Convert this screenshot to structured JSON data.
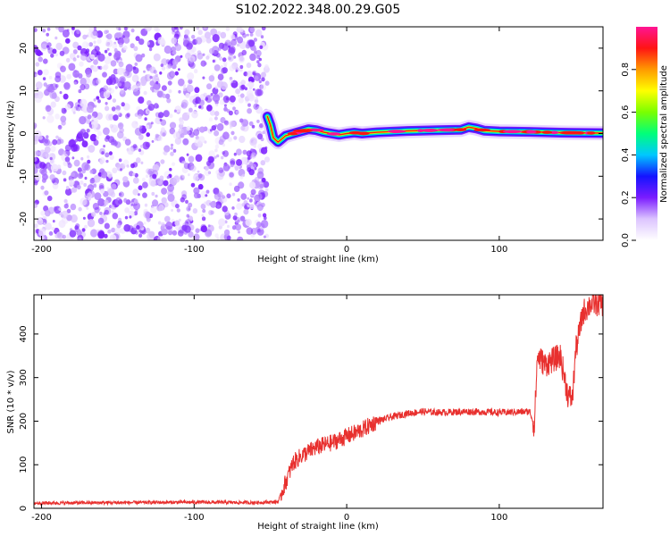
{
  "title": "S102.2022.348.00.29.G05",
  "chart_data": [
    {
      "type": "heatmap",
      "xlabel": "Height of straight line (km)",
      "ylabel": "Frequency (Hz)",
      "xlim": [
        -205,
        168
      ],
      "ylim": [
        -25,
        25
      ],
      "xticks": [
        -200,
        -100,
        0,
        100
      ],
      "yticks": [
        -20,
        -10,
        0,
        10,
        20
      ],
      "colorbar": {
        "label": "Normalized spectral amplitude",
        "range": [
          0,
          1
        ],
        "ticks": [
          "0.0",
          "0.2",
          "0.4",
          "0.6",
          "0.8"
        ],
        "colors": [
          "#ffffff",
          "#dcc4ff",
          "#7a1cff",
          "#1414ff",
          "#00c8ff",
          "#00ff7a",
          "#7aff00",
          "#ffff00",
          "#ff9a00",
          "#ff1414",
          "#ff1493"
        ]
      },
      "noise_region_x": [
        -205,
        -52
      ],
      "signal_line": {
        "x": [
          -52,
          -50,
          -48,
          -45,
          -40,
          -35,
          -30,
          -25,
          -20,
          -15,
          -10,
          -5,
          0,
          5,
          10,
          20,
          40,
          60,
          75,
          80,
          85,
          90,
          100,
          120,
          140,
          168
        ],
        "y": [
          4,
          2,
          -1,
          -2,
          -0.5,
          0,
          0.5,
          1,
          0.8,
          0.3,
          0,
          -0.3,
          0,
          0.2,
          0,
          0.3,
          0.6,
          0.8,
          0.9,
          1.5,
          1.2,
          0.7,
          0.5,
          0.4,
          0.2,
          0.1
        ]
      },
      "grid": false
    },
    {
      "type": "line",
      "xlabel": "Height of straight line (km)",
      "ylabel": "SNR (10 * v/v)",
      "xlim": [
        -205,
        168
      ],
      "ylim": [
        0,
        490
      ],
      "xticks": [
        -200,
        -100,
        0,
        100
      ],
      "yticks": [
        0,
        100,
        200,
        300,
        400
      ],
      "color": "#e8302e",
      "series": [
        {
          "x": [
            -205,
            -150,
            -100,
            -60,
            -45,
            -40,
            -35,
            -30,
            -25,
            -20,
            -10,
            0,
            10,
            20,
            30,
            40,
            50,
            60,
            80,
            100,
            120,
            123,
            125,
            130,
            135,
            140,
            145,
            148,
            150,
            155,
            160,
            165,
            168
          ],
          "y": [
            12,
            13,
            14,
            13,
            15,
            60,
            105,
            120,
            130,
            140,
            150,
            165,
            180,
            200,
            210,
            218,
            222,
            220,
            222,
            220,
            222,
            190,
            350,
            330,
            340,
            350,
            260,
            250,
            360,
            450,
            470,
            470,
            470
          ]
        }
      ],
      "grid": false
    }
  ]
}
